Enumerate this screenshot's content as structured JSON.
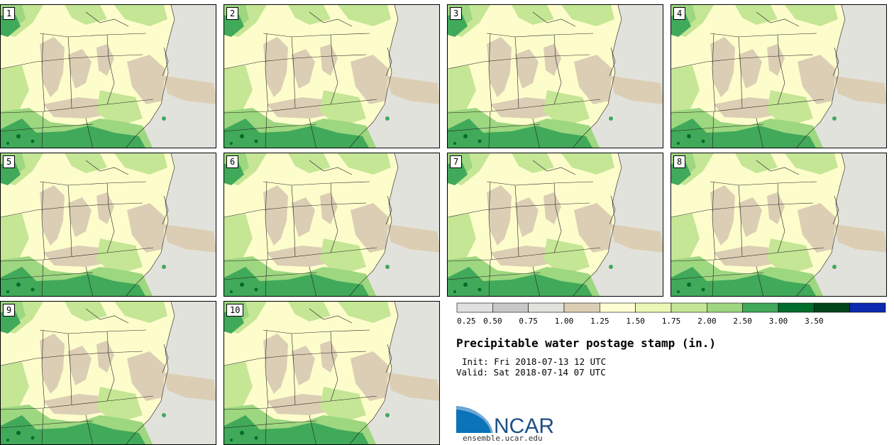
{
  "product": {
    "title": "Precipitable water postage stamp (in.)",
    "init": "Init: Fri 2018-07-13 12 UTC",
    "valid": "Valid: Sat 2018-07-14 07 UTC"
  },
  "members": [
    "1",
    "2",
    "3",
    "4",
    "5",
    "6",
    "7",
    "8",
    "9",
    "10"
  ],
  "colorbar": {
    "ticks": [
      "0.25",
      "0.50",
      "0.75",
      "1.00",
      "1.25",
      "1.50",
      "1.75",
      "2.00",
      "2.50",
      "3.00",
      "3.50"
    ],
    "colors": [
      "#e0e0e0",
      "#c7c7c7",
      "#e2e2dc",
      "#dcceb4",
      "#ffffd2",
      "#eaf7b5",
      "#c5e695",
      "#9dd780",
      "#41a95a",
      "#006d2c",
      "#00441b",
      "#0c2aaf"
    ]
  },
  "logo": {
    "name": "NCAR",
    "url": "ensemble.ucar.edu"
  }
}
